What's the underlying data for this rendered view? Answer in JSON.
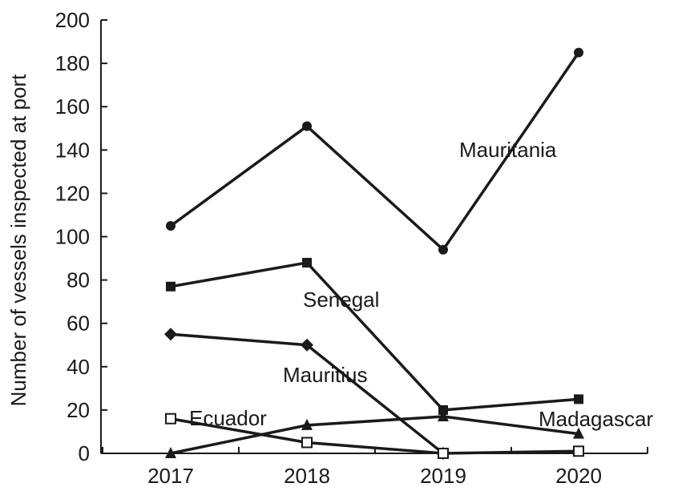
{
  "chart_data": {
    "type": "line",
    "title": "",
    "xlabel": "",
    "ylabel": "Number of vessels inspected at port",
    "categories": [
      "2017",
      "2018",
      "2019",
      "2020"
    ],
    "ylim": [
      0,
      200
    ],
    "yticks": [
      "0",
      "20",
      "40",
      "60",
      "80",
      "100",
      "120",
      "140",
      "160",
      "180",
      "200"
    ],
    "grid": false,
    "legend": "none (series labeled inline)",
    "series": [
      {
        "name": "Mauritania",
        "marker": "filled-circle",
        "values": [
          105,
          151,
          94,
          185
        ]
      },
      {
        "name": "Senegal",
        "marker": "filled-square",
        "values": [
          77,
          88,
          20,
          25
        ]
      },
      {
        "name": "Mauritius",
        "marker": "filled-diamond",
        "values": [
          55,
          50,
          0,
          null
        ]
      },
      {
        "name": "Madagascar",
        "marker": "filled-triangle",
        "values": [
          0,
          13,
          17,
          9
        ]
      },
      {
        "name": "Ecuador",
        "marker": "open-square",
        "values": [
          16,
          5,
          0,
          1
        ]
      }
    ]
  }
}
